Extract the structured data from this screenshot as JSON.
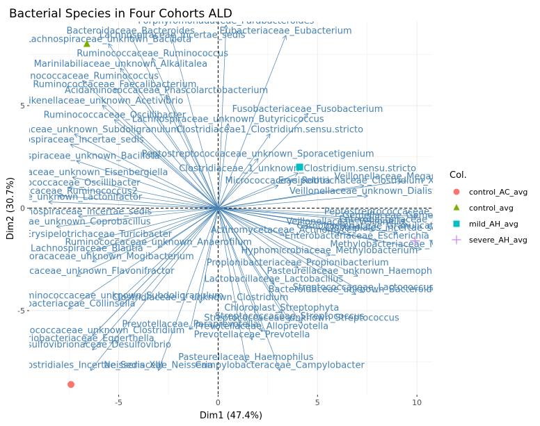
{
  "chart_data": {
    "type": "scatter",
    "title": "Bacterial Species in Four Cohorts ALD",
    "xlabel": "Dim1 (47.4%)",
    "ylabel": "Dim2 (30.7%)",
    "xlim": [
      -9.5,
      10.8
    ],
    "ylim": [
      -9.1,
      9.1
    ],
    "xticks": [
      -5,
      0,
      5,
      10
    ],
    "yticks": [
      -5,
      0,
      5
    ],
    "grid": true,
    "legend": {
      "title": "Col.",
      "placement": "right",
      "entries": [
        {
          "label": "control_AC_avg",
          "shape": "circle",
          "color": "#F8766D"
        },
        {
          "label": "control_avg",
          "shape": "triangle",
          "color": "#7CAE00"
        },
        {
          "label": "mild_AH_avg",
          "shape": "square",
          "color": "#00BFC4"
        },
        {
          "label": "severe_AH_avg",
          "shape": "plus",
          "color": "#C77CFF"
        }
      ]
    },
    "points": [
      {
        "name": "control_AC_avg",
        "x": -7.4,
        "y": -8.6
      },
      {
        "name": "control_avg",
        "x": -6.6,
        "y": 8.0
      },
      {
        "name": "mild_AH_avg",
        "x": 4.1,
        "y": 2.0
      },
      {
        "name": "severe_AH_avg",
        "x": 9.9,
        "y": -1.6
      }
    ],
    "arrow_color": "#4682B4",
    "arrows": [
      {
        "label": "Porphyromonadaceae_Parabacteroides",
        "x": 0.4,
        "y": 8.9
      },
      {
        "label": "Eubacteriaceae_Eubacterium",
        "x": 3.4,
        "y": 8.4
      },
      {
        "label": "Bacteroidaceae_Bacteroides",
        "x": -4.4,
        "y": 8.4
      },
      {
        "label": "Lachnospiraceae_incertae_sedis",
        "x": -2.3,
        "y": 8.2
      },
      {
        "label": "Lachnospiraceae_unknown_Bacillota",
        "x": -5.5,
        "y": 8.0
      },
      {
        "label": "Ruminococcaceae_Ruminococcus",
        "x": -3.3,
        "y": 7.3
      },
      {
        "label": "Marinilabiliaceae_unknown_Alkalitalea",
        "x": -4.9,
        "y": 6.8
      },
      {
        "label": "Ruminococcaceae_Ruminococcus",
        "x": -6.8,
        "y": 6.2
      },
      {
        "label": "Ruminococcaceae_Faecalibacterium",
        "x": -5.2,
        "y": 5.8
      },
      {
        "label": "Acidaminococcaceae_Phascolarctobacterium",
        "x": -2.6,
        "y": 5.5
      },
      {
        "label": "Rikenellaceae_unknown_Acetivibrio",
        "x": -5.8,
        "y": 5.0
      },
      {
        "label": "Fusobacteriaceae_Fusobacterium",
        "x": 4.5,
        "y": 4.6
      },
      {
        "label": "Ruminococcaceae_Oscillibacter",
        "x": -5.2,
        "y": 4.3
      },
      {
        "label": "Lachnospiraceae_unknown_Butyricicoccus",
        "x": 0.5,
        "y": 4.1
      },
      {
        "label": "Clostridiaceae1_Clostridium.sensu.stricto",
        "x": 2.6,
        "y": 3.6
      },
      {
        "label": "Ruminococcaceae_unknown_Subdoligranulum",
        "x": -7.2,
        "y": 3.6
      },
      {
        "label": "Lachnospiraceae_incertae_sedis",
        "x": -7.4,
        "y": 3.1
      },
      {
        "label": "Peptostreptococcaceae_unknown_Sporacetigenium",
        "x": 2.0,
        "y": 2.4
      },
      {
        "label": "Lachnospiraceae_unknown_Bacillota",
        "x": -7.1,
        "y": 2.3
      },
      {
        "label": "Clostridiaceae_1_unknown_Clostridium.sensu.stricto",
        "x": 4.0,
        "y": 1.7
      },
      {
        "label": "Lachnospiraceae_unknown_Eisenbergiella",
        "x": -7.3,
        "y": 1.5
      },
      {
        "label": "Veillonellaceae_Megasphaera",
        "x": 9.2,
        "y": 1.3
      },
      {
        "label": "Erysipelotrichaceae_Clostridium_XVIII",
        "x": 7.3,
        "y": 1.1
      },
      {
        "label": "Micrococcaceae_Rothia",
        "x": 3.0,
        "y": 1.1
      },
      {
        "label": "Ruminococcaceae_Oscillibacter",
        "x": -7.5,
        "y": 1.0
      },
      {
        "label": "Ruminococcaceae_Ruminococcus2",
        "x": -8.0,
        "y": 0.6
      },
      {
        "label": "Veillonellaceae_unknown_Dialister",
        "x": 7.5,
        "y": 0.6
      },
      {
        "label": "Lachnospiraceae_unknown_Lactonifactor",
        "x": -8.5,
        "y": 0.3
      },
      {
        "label": "Lachnospiraceae_incertae_sedis",
        "x": -7.0,
        "y": -0.4
      },
      {
        "label": "Lachnospiraceae_unknown_Coprobacillus",
        "x": -8.1,
        "y": -0.9
      },
      {
        "label": "Peptostreptococcaceae_Peptoclostridium",
        "x": 10.0,
        "y": -0.4
      },
      {
        "label": "Enterobacteriaceae_Klebsiella",
        "x": 9.5,
        "y": -0.8
      },
      {
        "label": "Clostridiales_incertae_sedis_XIII",
        "x": 9.0,
        "y": -1.2
      },
      {
        "label": "Enterobacteriaceae_Escherichia_Shigella",
        "x": 8.0,
        "y": -1.6
      },
      {
        "label": "Methylobacteriaceae_Methylobacterium",
        "x": 10.2,
        "y": -2.0
      },
      {
        "label": "Erysipelotrichaceae_Turicibacter",
        "x": -6.0,
        "y": -1.5
      },
      {
        "label": "Ruminococcaceae_unknown_Anaerofilum",
        "x": -3.0,
        "y": -1.9
      },
      {
        "label": "Lachnospiraceae_Blautia",
        "x": -6.6,
        "y": -2.2
      },
      {
        "label": "Anaerovoracaceae_unknown_Mogibacterium",
        "x": -6.3,
        "y": -2.6
      },
      {
        "label": "Hyphomicrobiaceae_Methylobacterium",
        "x": 5.6,
        "y": -2.3
      },
      {
        "label": "Propionibacteriaceae_Propionibacterium",
        "x": 4.0,
        "y": -2.9
      },
      {
        "label": "Pasteurellaceae_unknown_Haemophilus",
        "x": 7.0,
        "y": -3.3
      },
      {
        "label": "Ruminococcaceae_unknown_Flavonifractor",
        "x": -7.1,
        "y": -3.3
      },
      {
        "label": "Lactobacillaceae_Lactobacillus",
        "x": 2.8,
        "y": -3.7
      },
      {
        "label": "Streptococcaceae_Lactococcus",
        "x": 7.3,
        "y": -4.1
      },
      {
        "label": "Bacteroidaceae_unknown_Bacteroides",
        "x": 6.9,
        "y": -4.2
      },
      {
        "label": "Ruminococcaceae_unknown_Subdoligranulum",
        "x": -5.0,
        "y": -4.5
      },
      {
        "label": "Coriobacteriaceae_Collinsella",
        "x": -7.5,
        "y": -4.9
      },
      {
        "label": "Clostridiaceae_1_unknown_Clostridium",
        "x": -0.9,
        "y": -4.6
      },
      {
        "label": "Chloroplast_Streptophyta",
        "x": 3.2,
        "y": -5.1
      },
      {
        "label": "Streptococcaceae_Streptococcus",
        "x": 3.6,
        "y": -5.5
      },
      {
        "label": "Prevotellaceae_Paraprevotella",
        "x": -1.4,
        "y": -5.9
      },
      {
        "label": "Streptococcaceae_unknown_Streptococcus",
        "x": 4.2,
        "y": -5.6
      },
      {
        "label": "Prevotellaceae_Alloprevotella",
        "x": 2.2,
        "y": -6.0
      },
      {
        "label": "Prevotellaceae_Prevotella",
        "x": 1.7,
        "y": -6.4
      },
      {
        "label": "Ruminococcaceae_unknown_Clostridium",
        "x": -6.3,
        "y": -6.2
      },
      {
        "label": "Coriobacteriaceae_Eggerthella",
        "x": -6.7,
        "y": -6.6
      },
      {
        "label": "Desulfovibrionaceae_Desulfovibrio",
        "x": -6.3,
        "y": -6.9
      },
      {
        "label": "Pasteurellaceae_Haemophilus",
        "x": 1.4,
        "y": -7.5
      },
      {
        "label": "Neisseriaceae_Neisseria",
        "x": -3.0,
        "y": -7.9
      },
      {
        "label": "Clostridiales_Incertae_Sedis_XIII",
        "x": -6.4,
        "y": -7.9
      },
      {
        "label": "Campylobacteraceae_Campylobacter",
        "x": 3.1,
        "y": -7.9
      },
      {
        "label": "Actinomycetaceae_Actinomyces",
        "x": 3.3,
        "y": -1.3
      },
      {
        "label": "Carnobacteriaceae_Granulicatella",
        "x": 7.8,
        "y": -1.1
      },
      {
        "label": "Veillonellaceae_Veillonella",
        "x": 6.4,
        "y": -0.9
      },
      {
        "label": "Gemellaceae_Gemella",
        "x": 8.8,
        "y": -0.6
      }
    ]
  }
}
